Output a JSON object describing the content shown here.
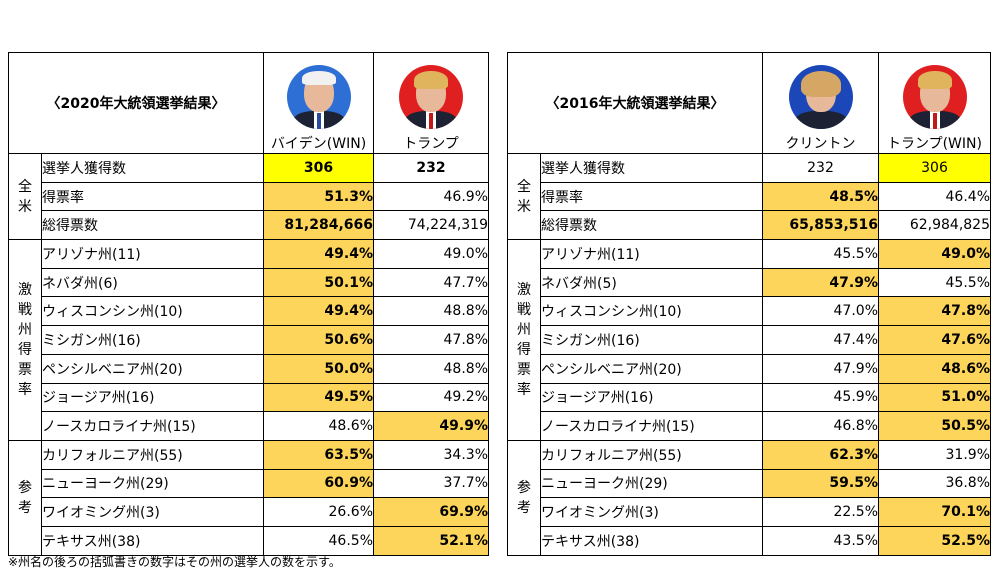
{
  "table_2020": {
    "title": "〈2020年大統領選挙結果〉",
    "candidate_a": {
      "name": "バイデン(WIN)",
      "portrait_color": "#2d6fd4"
    },
    "candidate_b": {
      "name": "トランプ",
      "portrait_color": "#e02020"
    },
    "group_national": "全米",
    "group_battleground": "激戦州得票率",
    "group_reference": "参考",
    "rows": [
      {
        "label": "選挙人獲得数",
        "a": "306",
        "b": "232"
      },
      {
        "label": "得票率",
        "a": "51.3%",
        "b": "46.9%"
      },
      {
        "label": "総得票数",
        "a": "81,284,666",
        "b": "74,224,319"
      },
      {
        "label": "アリゾナ州(11)",
        "a": "49.4%",
        "b": "49.0%"
      },
      {
        "label": "ネバダ州(6)",
        "a": "50.1%",
        "b": "47.7%"
      },
      {
        "label": "ウィスコンシン州(10)",
        "a": "49.4%",
        "b": "48.8%"
      },
      {
        "label": "ミシガン州(16)",
        "a": "50.6%",
        "b": "47.8%"
      },
      {
        "label": "ペンシルベニア州(20)",
        "a": "50.0%",
        "b": "48.8%"
      },
      {
        "label": "ジョージア州(16)",
        "a": "49.5%",
        "b": "49.2%"
      },
      {
        "label": "ノースカロライナ州(15)",
        "a": "48.6%",
        "b": "49.9%"
      },
      {
        "label": "カリフォルニア州(55)",
        "a": "63.5%",
        "b": "34.3%"
      },
      {
        "label": "ニューヨーク州(29)",
        "a": "60.9%",
        "b": "37.7%"
      },
      {
        "label": "ワイオミング州(3)",
        "a": "26.6%",
        "b": "69.9%"
      },
      {
        "label": "テキサス州(38)",
        "a": "46.5%",
        "b": "52.1%"
      }
    ]
  },
  "table_2016": {
    "title": "〈2016年大統領選挙結果〉",
    "candidate_a": {
      "name": "クリントン",
      "portrait_color": "#1b47b8"
    },
    "candidate_b": {
      "name": "トランプ(WIN)",
      "portrait_color": "#e02020"
    },
    "group_national": "全米",
    "group_battleground": "激戦州得票率",
    "group_reference": "参考",
    "rows": [
      {
        "label": "選挙人獲得数",
        "a": "232",
        "b": "306"
      },
      {
        "label": "得票率",
        "a": "48.5%",
        "b": "46.4%"
      },
      {
        "label": "総得票数",
        "a": "65,853,516",
        "b": "62,984,825"
      },
      {
        "label": "アリゾナ州(11)",
        "a": "45.5%",
        "b": "49.0%"
      },
      {
        "label": "ネバダ州(5)",
        "a": "47.9%",
        "b": "45.5%"
      },
      {
        "label": "ウィスコンシン州(10)",
        "a": "47.0%",
        "b": "47.8%"
      },
      {
        "label": "ミシガン州(16)",
        "a": "47.4%",
        "b": "47.6%"
      },
      {
        "label": "ペンシルベニア州(20)",
        "a": "47.9%",
        "b": "48.6%"
      },
      {
        "label": "ジョージア州(16)",
        "a": "45.9%",
        "b": "51.0%"
      },
      {
        "label": "ノースカロライナ州(15)",
        "a": "46.8%",
        "b": "50.5%"
      },
      {
        "label": "カリフォルニア州(55)",
        "a": "62.3%",
        "b": "31.9%"
      },
      {
        "label": "ニューヨーク州(29)",
        "a": "59.5%",
        "b": "36.8%"
      },
      {
        "label": "ワイオミング州(3)",
        "a": "22.5%",
        "b": "70.1%"
      },
      {
        "label": "テキサス州(38)",
        "a": "43.5%",
        "b": "52.5%"
      }
    ]
  },
  "highlight_colors": {
    "winner_cell": "#fdd55b",
    "electoral_winner": "#ffff00"
  },
  "footnote": "※州名の後ろの括弧書きの数字はその州の選挙人の数を示す。"
}
